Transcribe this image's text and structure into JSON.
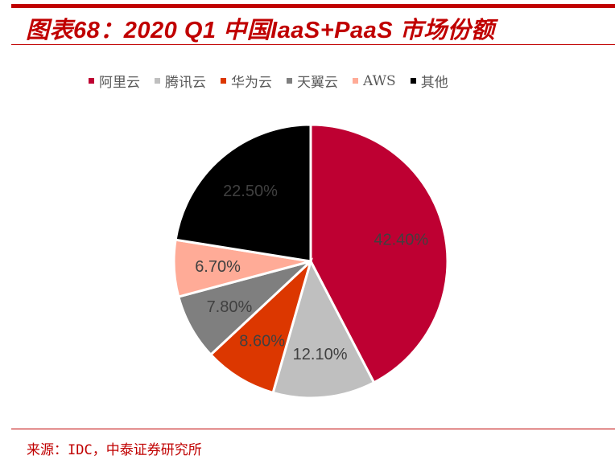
{
  "header": {
    "title": "图表68：2020 Q1 中国IaaS+PaaS 市场份额"
  },
  "footer": {
    "source": "来源：IDC，中泰证券研究所"
  },
  "colors": {
    "accent": "#c00000"
  },
  "chart_data": {
    "type": "pie",
    "title": "2020 Q1 中国IaaS+PaaS 市场份额",
    "categories": [
      "阿里云",
      "腾讯云",
      "华为云",
      "天翼云",
      "AWS",
      "其他"
    ],
    "values": [
      42.4,
      12.1,
      8.6,
      7.8,
      6.7,
      22.5
    ],
    "labels": [
      "42.40%",
      "12.10%",
      "8.60%",
      "7.80%",
      "6.70%",
      "22.50%"
    ],
    "colors": [
      "#be0032",
      "#bfbfbf",
      "#dc3700",
      "#7f7f7f",
      "#ffab97",
      "#000000"
    ],
    "start_angle": "12 o'clock",
    "direction": "clockwise",
    "legend_position": "top"
  }
}
